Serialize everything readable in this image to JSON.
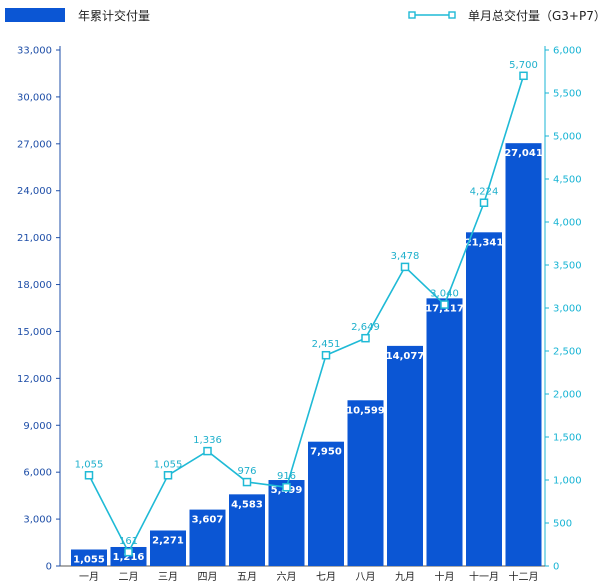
{
  "legend": {
    "bar_label": "年累计交付量",
    "line_label": "单月总交付量（G3+P7）"
  },
  "colors": {
    "bar": "#0b56d4",
    "line": "#1fbad6",
    "left_axis_text": "#1f4fa8",
    "right_axis_text": "#18b4d4"
  },
  "chart_data": {
    "type": "bar",
    "categories": [
      "一月",
      "二月",
      "三月",
      "四月",
      "五月",
      "六月",
      "七月",
      "八月",
      "九月",
      "十月",
      "十一月",
      "十二月"
    ],
    "series": [
      {
        "name": "年累计交付量",
        "type": "bar",
        "axis": "left",
        "values": [
          1055,
          1216,
          2271,
          3607,
          4583,
          5499,
          7950,
          10599,
          14077,
          17117,
          21341,
          27041
        ],
        "labels": [
          "1,055",
          "1,216",
          "2,271",
          "3,607",
          "4,583",
          "5,499",
          "7,950",
          "10,599",
          "14,077",
          "17,117",
          "21,341",
          "27,041"
        ]
      },
      {
        "name": "单月总交付量（G3+P7）",
        "type": "line",
        "axis": "right",
        "values": [
          1055,
          161,
          1055,
          1336,
          976,
          916,
          2451,
          2649,
          3478,
          3040,
          4224,
          5700
        ],
        "labels": [
          "1,055",
          "161",
          "1,055",
          "1,336",
          "976",
          "916",
          "2,451",
          "2,649",
          "3,478",
          "3,040",
          "4,224",
          "5,700"
        ]
      }
    ],
    "y_left": {
      "range": [
        0,
        33000
      ],
      "ticks": [
        0,
        3000,
        6000,
        9000,
        12000,
        15000,
        18000,
        21000,
        24000,
        27000,
        30000,
        33000
      ],
      "tick_labels": [
        "0",
        "3,000",
        "6,000",
        "9,000",
        "12,000",
        "15,000",
        "18,000",
        "21,000",
        "24,000",
        "27,000",
        "30,000",
        "33,000"
      ]
    },
    "y_right": {
      "range": [
        0,
        6000
      ],
      "ticks": [
        0,
        500,
        1000,
        1500,
        2000,
        2500,
        3000,
        3500,
        4000,
        4500,
        5000,
        5500,
        6000
      ],
      "tick_labels": [
        "0",
        "500",
        "1,000",
        "1,500",
        "2,000",
        "2,500",
        "3,000",
        "3,500",
        "4,000",
        "4,500",
        "5,000",
        "5,500",
        "6,000"
      ]
    },
    "grid": false,
    "legend_position": "top"
  }
}
